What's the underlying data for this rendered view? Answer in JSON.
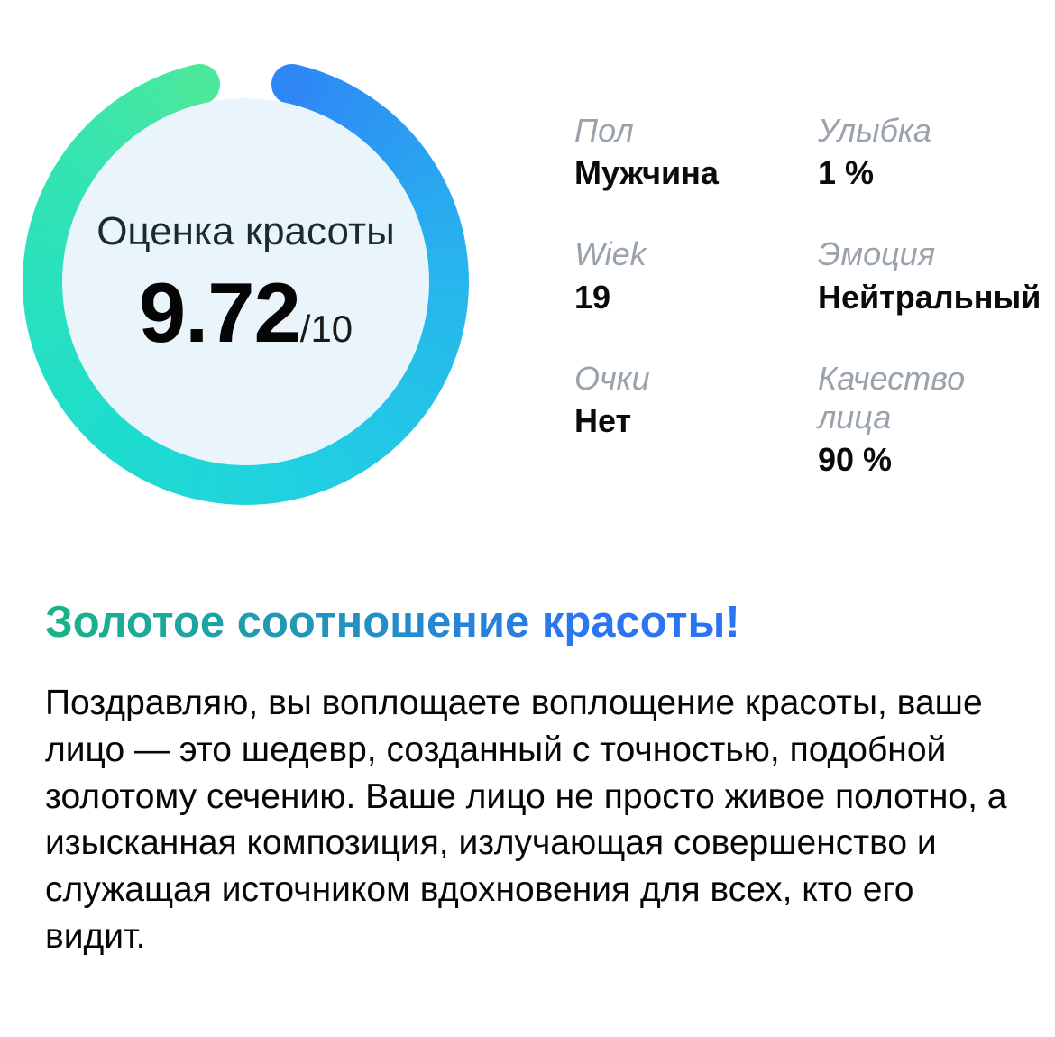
{
  "gauge": {
    "title": "Оценка красоты",
    "score": "9.72",
    "score_suffix": "/10",
    "score_max": 10,
    "percent": 97.2,
    "colors": {
      "green": "#4be89c",
      "light_green": "#33e4b2",
      "teal": "#1eddcd",
      "cyan": "#20d0e2",
      "light_blue": "#28b3ee",
      "blue": "#2e87f5",
      "inner_bg": "#e9f5fb"
    }
  },
  "stats": [
    {
      "label": "Пол",
      "value": "Мужчина"
    },
    {
      "label": "Улыбка",
      "value": "1 %"
    },
    {
      "label": "Wiek",
      "value": "19"
    },
    {
      "label": "Эмоция",
      "value": "Нейтральный"
    },
    {
      "label": "Очки",
      "value": "Нет"
    },
    {
      "label": "Качество лица",
      "value": "90 %"
    }
  ],
  "result": {
    "heading": "Золотое соотношение красоты!",
    "heading_colors": [
      "#17b586",
      "#2b74f2"
    ],
    "body": "Поздравляю, вы воплощаете воплощение красоты, ваше лицо — это шедевр, созданный с точностью, подобной золотому сечению. Ваше лицо не просто живое полотно, а изысканная композиция, излучающая совершенство и служащая источником вдохновения для всех, кто его видит."
  }
}
